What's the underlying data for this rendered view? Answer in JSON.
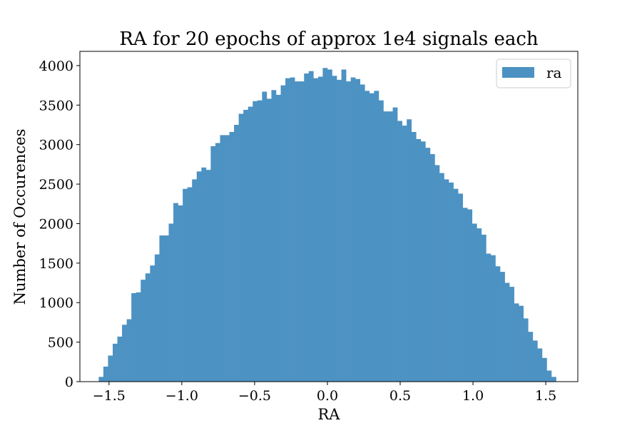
{
  "chart_data": {
    "type": "bar",
    "title": "RA for 20 epochs of approx 1e4 signals each",
    "xlabel": "RA",
    "ylabel": "Number of Occurences",
    "xlim": [
      -1.7,
      1.72
    ],
    "ylim": [
      0,
      4180
    ],
    "xticks": [
      -1.5,
      -1.0,
      -0.5,
      0.0,
      0.5,
      1.0,
      1.5
    ],
    "xtick_labels": [
      "−1.5",
      "−1.0",
      "−0.5",
      "0.0",
      "0.5",
      "1.0",
      "1.5"
    ],
    "yticks": [
      0,
      500,
      1000,
      1500,
      2000,
      2500,
      3000,
      3500,
      4000
    ],
    "ytick_labels": [
      "0",
      "500",
      "1000",
      "1500",
      "2000",
      "2500",
      "3000",
      "3500",
      "4000"
    ],
    "grid": false,
    "legend": {
      "position": "top-right",
      "entries": [
        "ra"
      ]
    },
    "series": [
      {
        "name": "ra",
        "color": "#4c92c3",
        "bin_start": -1.5708,
        "bin_end": 1.5708,
        "values": [
          60,
          190,
          330,
          480,
          570,
          720,
          790,
          1120,
          1130,
          1290,
          1370,
          1470,
          1610,
          1850,
          1850,
          2000,
          2260,
          2230,
          2440,
          2460,
          2560,
          2660,
          2710,
          2680,
          2980,
          3020,
          3120,
          3120,
          3160,
          3250,
          3390,
          3440,
          3480,
          3550,
          3560,
          3670,
          3580,
          3690,
          3630,
          3750,
          3840,
          3850,
          3800,
          3800,
          3900,
          3930,
          3840,
          3860,
          3970,
          3950,
          3870,
          3820,
          3950,
          3800,
          3850,
          3830,
          3760,
          3680,
          3650,
          3680,
          3560,
          3420,
          3420,
          3470,
          3300,
          3240,
          3320,
          3160,
          3070,
          3040,
          2960,
          2880,
          2740,
          2640,
          2560,
          2520,
          2440,
          2380,
          2200,
          2180,
          2000,
          1940,
          1860,
          1620,
          1600,
          1460,
          1390,
          1250,
          1200,
          990,
          960,
          800,
          630,
          520,
          420,
          300,
          140,
          60
        ]
      }
    ]
  }
}
